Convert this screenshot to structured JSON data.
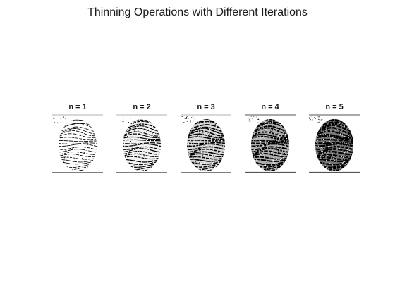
{
  "figure": {
    "title": "Thinning Operations with Different Iterations"
  },
  "panels": [
    {
      "title": "n = 1",
      "iterations": 1
    },
    {
      "title": "n = 2",
      "iterations": 2
    },
    {
      "title": "n = 3",
      "iterations": 3
    },
    {
      "title": "n = 4",
      "iterations": 4
    },
    {
      "title": "n = 5",
      "iterations": 5
    }
  ]
}
